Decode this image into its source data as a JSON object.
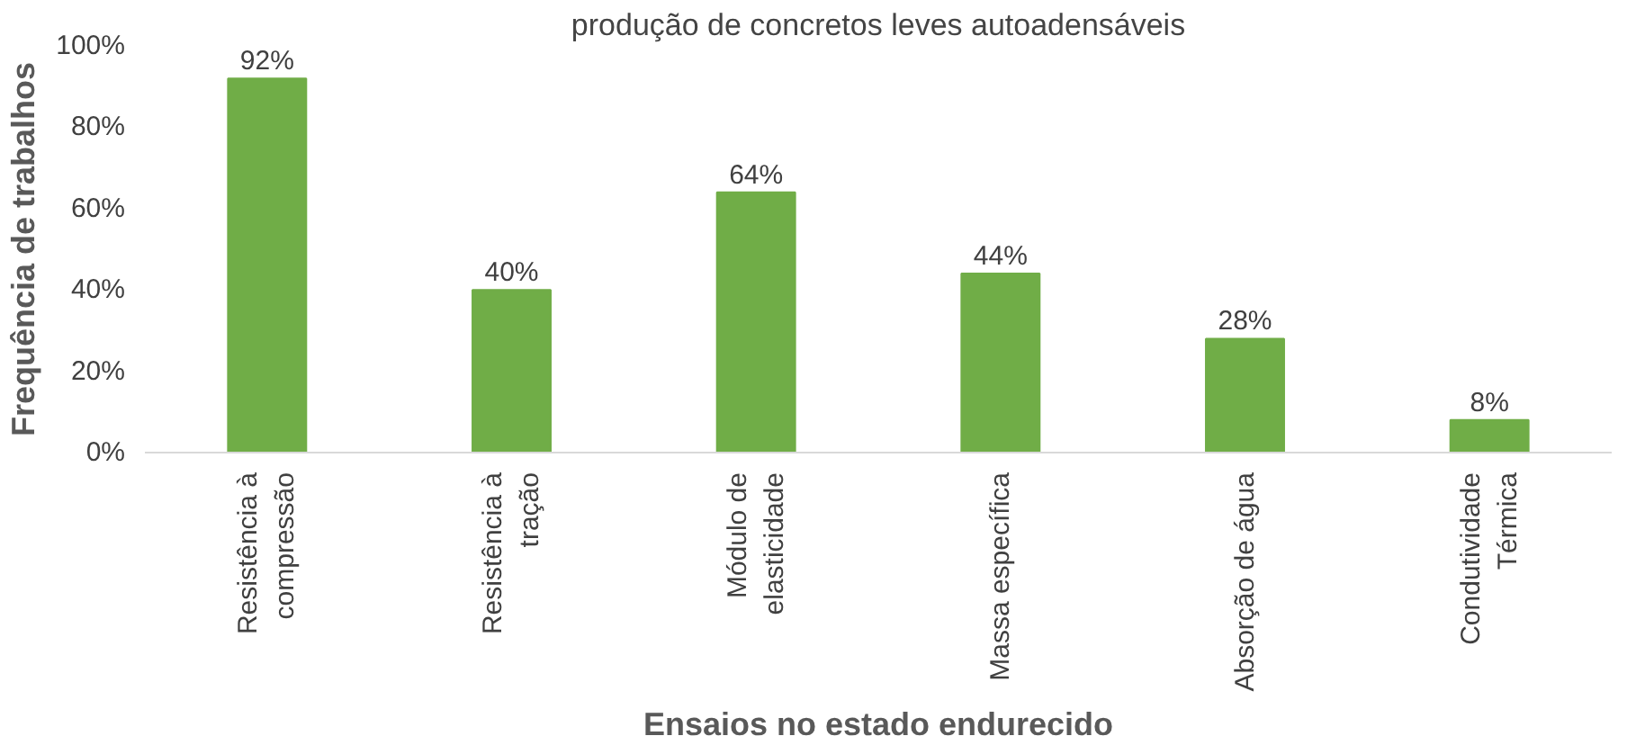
{
  "chart_data": {
    "type": "bar",
    "title": "produção de concretos leves autoadensáveis",
    "xlabel": "Ensaios no estado endurecido",
    "ylabel": "Frequência de trabalhos",
    "categories": [
      "Resistência à\ncompressão",
      "Resistência à\ntração",
      "Módulo de\nelasticidade",
      "Massa específica",
      "Absorção de água",
      "Condutividade\nTérmica"
    ],
    "values": [
      92,
      40,
      64,
      44,
      28,
      8
    ],
    "color": "#70ad47",
    "ylim": [
      0,
      100
    ],
    "yticks": [
      {
        "value": 0,
        "label": "0%"
      },
      {
        "value": 20,
        "label": "20%"
      },
      {
        "value": 40,
        "label": "40%"
      },
      {
        "value": 60,
        "label": "60%"
      },
      {
        "value": 80,
        "label": "80%"
      },
      {
        "value": 100,
        "label": "100%"
      }
    ],
    "value_labels": [
      "92%",
      "40%",
      "64%",
      "44%",
      "28%",
      "8%"
    ],
    "grid": false
  }
}
